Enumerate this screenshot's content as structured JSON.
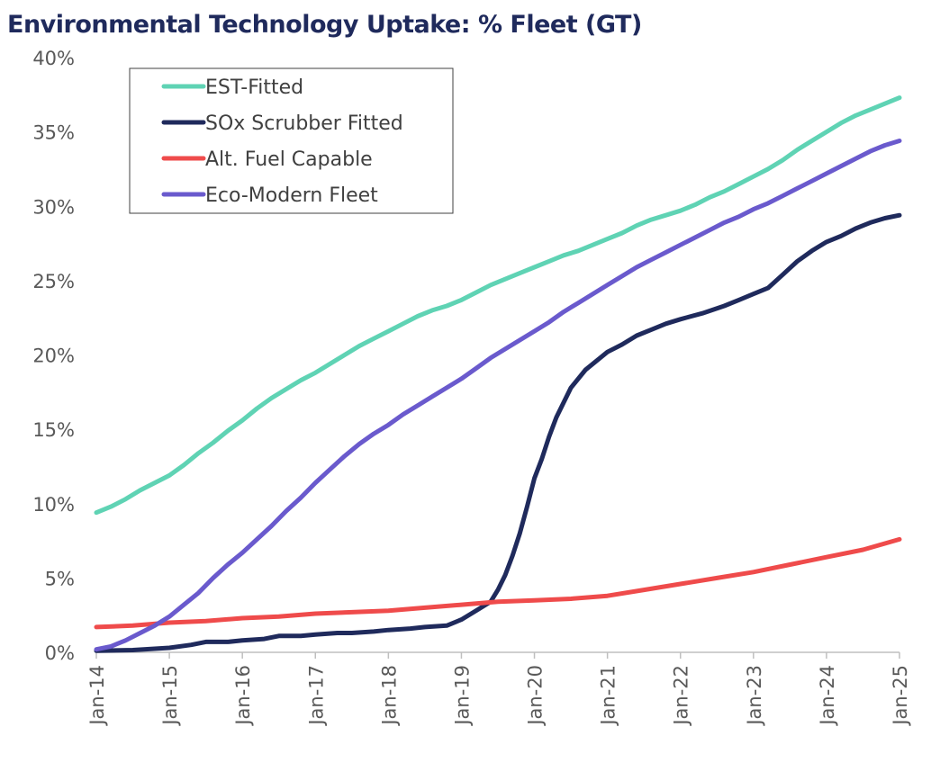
{
  "chart_data": {
    "type": "line",
    "title": "Environmental Technology Uptake: % Fleet (GT)",
    "xlabel": "",
    "ylabel": "",
    "x_unit": "years since Jan-14",
    "xlim": [
      0,
      11
    ],
    "ylim": [
      0,
      40
    ],
    "y_ticks": [
      "0%",
      "5%",
      "10%",
      "15%",
      "20%",
      "25%",
      "30%",
      "35%",
      "40%"
    ],
    "x_ticks": [
      "Jan-14",
      "Jan-15",
      "Jan-16",
      "Jan-17",
      "Jan-18",
      "Jan-19",
      "Jan-20",
      "Jan-21",
      "Jan-22",
      "Jan-23",
      "Jan-24",
      "Jan-25"
    ],
    "grid": false,
    "legend_position": "top-left",
    "series": [
      {
        "name": "EST-Fitted",
        "color": "#5fd3b4",
        "x": [
          0,
          0.2,
          0.4,
          0.6,
          0.8,
          1.0,
          1.2,
          1.4,
          1.6,
          1.8,
          2.0,
          2.2,
          2.4,
          2.6,
          2.8,
          3.0,
          3.2,
          3.4,
          3.6,
          3.8,
          4.0,
          4.2,
          4.4,
          4.6,
          4.8,
          5.0,
          5.2,
          5.4,
          5.6,
          5.8,
          6.0,
          6.2,
          6.4,
          6.6,
          6.8,
          7.0,
          7.2,
          7.4,
          7.6,
          7.8,
          8.0,
          8.2,
          8.4,
          8.6,
          8.8,
          9.0,
          9.2,
          9.4,
          9.6,
          9.8,
          10.0,
          10.2,
          10.4,
          10.6,
          10.8,
          11.0
        ],
        "values": [
          9.4,
          9.8,
          10.3,
          10.9,
          11.4,
          11.9,
          12.6,
          13.4,
          14.1,
          14.9,
          15.6,
          16.4,
          17.1,
          17.7,
          18.3,
          18.8,
          19.4,
          20.0,
          20.6,
          21.1,
          21.6,
          22.1,
          22.6,
          23.0,
          23.3,
          23.7,
          24.2,
          24.7,
          25.1,
          25.5,
          25.9,
          26.3,
          26.7,
          27.0,
          27.4,
          27.8,
          28.2,
          28.7,
          29.1,
          29.4,
          29.7,
          30.1,
          30.6,
          31.0,
          31.5,
          32.0,
          32.5,
          33.1,
          33.8,
          34.4,
          35.0,
          35.6,
          36.1,
          36.5,
          36.9,
          37.3
        ]
      },
      {
        "name": "SOx Scrubber Fitted",
        "color": "#1f2a5c",
        "x": [
          0,
          0.5,
          1.0,
          1.3,
          1.5,
          1.8,
          2.0,
          2.3,
          2.5,
          2.8,
          3.0,
          3.3,
          3.5,
          3.8,
          4.0,
          4.3,
          4.5,
          4.8,
          5.0,
          5.2,
          5.4,
          5.5,
          5.6,
          5.7,
          5.8,
          5.9,
          6.0,
          6.1,
          6.2,
          6.3,
          6.4,
          6.5,
          6.7,
          6.9,
          7.0,
          7.2,
          7.4,
          7.6,
          7.8,
          8.0,
          8.3,
          8.6,
          8.8,
          9.0,
          9.2,
          9.4,
          9.6,
          9.8,
          10.0,
          10.2,
          10.4,
          10.6,
          10.8,
          11.0
        ],
        "values": [
          0.1,
          0.15,
          0.3,
          0.5,
          0.7,
          0.7,
          0.8,
          0.9,
          1.1,
          1.1,
          1.2,
          1.3,
          1.3,
          1.4,
          1.5,
          1.6,
          1.7,
          1.8,
          2.2,
          2.8,
          3.4,
          4.2,
          5.2,
          6.5,
          8.0,
          9.8,
          11.7,
          13.0,
          14.5,
          15.8,
          16.8,
          17.8,
          19.0,
          19.8,
          20.2,
          20.7,
          21.3,
          21.7,
          22.1,
          22.4,
          22.8,
          23.3,
          23.7,
          24.1,
          24.5,
          25.4,
          26.3,
          27.0,
          27.6,
          28.0,
          28.5,
          28.9,
          29.2,
          29.4
        ]
      },
      {
        "name": "Alt. Fuel Capable",
        "color": "#ef4b4b",
        "x": [
          0,
          0.5,
          1.0,
          1.5,
          2.0,
          2.5,
          3.0,
          3.5,
          4.0,
          4.5,
          5.0,
          5.5,
          6.0,
          6.5,
          7.0,
          7.5,
          8.0,
          8.5,
          9.0,
          9.5,
          10.0,
          10.5,
          11.0
        ],
        "values": [
          1.7,
          1.8,
          2.0,
          2.1,
          2.3,
          2.4,
          2.6,
          2.7,
          2.8,
          3.0,
          3.2,
          3.4,
          3.5,
          3.6,
          3.8,
          4.2,
          4.6,
          5.0,
          5.4,
          5.9,
          6.4,
          6.9,
          7.6
        ]
      },
      {
        "name": "Eco-Modern Fleet",
        "color": "#6a5acd",
        "x": [
          0,
          0.2,
          0.4,
          0.6,
          0.8,
          1.0,
          1.2,
          1.4,
          1.6,
          1.8,
          2.0,
          2.2,
          2.4,
          2.6,
          2.8,
          3.0,
          3.2,
          3.4,
          3.6,
          3.8,
          4.0,
          4.2,
          4.4,
          4.6,
          4.8,
          5.0,
          5.2,
          5.4,
          5.6,
          5.8,
          6.0,
          6.2,
          6.4,
          6.6,
          6.8,
          7.0,
          7.2,
          7.4,
          7.6,
          7.8,
          8.0,
          8.2,
          8.4,
          8.6,
          8.8,
          9.0,
          9.2,
          9.4,
          9.6,
          9.8,
          10.0,
          10.2,
          10.4,
          10.6,
          10.8,
          11.0
        ],
        "values": [
          0.2,
          0.4,
          0.8,
          1.3,
          1.8,
          2.4,
          3.2,
          4.0,
          5.0,
          5.9,
          6.7,
          7.6,
          8.5,
          9.5,
          10.4,
          11.4,
          12.3,
          13.2,
          14.0,
          14.7,
          15.3,
          16.0,
          16.6,
          17.2,
          17.8,
          18.4,
          19.1,
          19.8,
          20.4,
          21.0,
          21.6,
          22.2,
          22.9,
          23.5,
          24.1,
          24.7,
          25.3,
          25.9,
          26.4,
          26.9,
          27.4,
          27.9,
          28.4,
          28.9,
          29.3,
          29.8,
          30.2,
          30.7,
          31.2,
          31.7,
          32.2,
          32.7,
          33.2,
          33.7,
          34.1,
          34.4
        ]
      }
    ]
  }
}
